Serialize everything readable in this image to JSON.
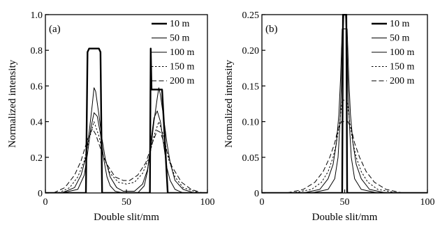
{
  "chart_data": [
    {
      "type": "line",
      "panel_label": "(a)",
      "xlabel": "Double slit/mm",
      "ylabel": "Normalized intensity",
      "xlim": [
        0,
        100
      ],
      "ylim": [
        0,
        1.0
      ],
      "xticks": [
        0,
        50,
        100
      ],
      "xtick_labels": [
        "0",
        "50",
        "100"
      ],
      "yticks": [
        0,
        0.2,
        0.4,
        0.6,
        0.8,
        1.0
      ],
      "ytick_labels": [
        "0",
        "0.2",
        "0.4",
        "0.6",
        "0.8",
        "1.0"
      ],
      "legend_position": "top-right",
      "series": [
        {
          "name": "10 m",
          "style": "solid-bold",
          "x": [
            0,
            25,
            26,
            27,
            33,
            34,
            35,
            64.5,
            65,
            65.5,
            72,
            75.5,
            100
          ],
          "y": [
            0,
            0,
            0.79,
            0.81,
            0.81,
            0.79,
            0,
            0,
            0.81,
            0.58,
            0.58,
            0,
            0
          ]
        },
        {
          "name": "50 m",
          "style": "solid",
          "x": [
            10,
            20,
            24,
            26,
            28,
            30,
            32,
            34,
            36,
            38,
            40,
            43,
            48,
            57,
            61,
            63,
            65,
            67,
            69,
            71,
            73,
            75,
            77,
            80,
            85,
            92
          ],
          "y": [
            0,
            0.02,
            0.1,
            0.22,
            0.36,
            0.45,
            0.43,
            0.33,
            0.19,
            0.09,
            0.04,
            0.01,
            0,
            0,
            0.04,
            0.12,
            0.28,
            0.42,
            0.46,
            0.4,
            0.27,
            0.14,
            0.07,
            0.02,
            0,
            0
          ]
        },
        {
          "name": "100 m",
          "style": "solid",
          "x": [
            10,
            18,
            22,
            25,
            27,
            29,
            30,
            31,
            33,
            35,
            37,
            40,
            44,
            48,
            55,
            60,
            63,
            65,
            67,
            69,
            70,
            71,
            73,
            75,
            77,
            80,
            85,
            92
          ],
          "y": [
            0,
            0.03,
            0.1,
            0.2,
            0.34,
            0.5,
            0.59,
            0.57,
            0.44,
            0.3,
            0.19,
            0.09,
            0.03,
            0.01,
            0.01,
            0.05,
            0.13,
            0.24,
            0.4,
            0.53,
            0.59,
            0.55,
            0.42,
            0.28,
            0.17,
            0.07,
            0.02,
            0
          ]
        },
        {
          "name": "150 m",
          "style": "dotted",
          "x": [
            8,
            15,
            20,
            24,
            27,
            30,
            33,
            36,
            40,
            45,
            50,
            55,
            60,
            64,
            67,
            70,
            73,
            76,
            80,
            85,
            95
          ],
          "y": [
            0,
            0.03,
            0.09,
            0.18,
            0.3,
            0.4,
            0.32,
            0.2,
            0.11,
            0.06,
            0.05,
            0.06,
            0.11,
            0.2,
            0.32,
            0.4,
            0.32,
            0.19,
            0.09,
            0.03,
            0
          ]
        },
        {
          "name": "200 m",
          "style": "dashed",
          "x": [
            5,
            12,
            18,
            22,
            26,
            29,
            31,
            34,
            38,
            43,
            48,
            52,
            57,
            62,
            66,
            69,
            71,
            74,
            78,
            84,
            90,
            97
          ],
          "y": [
            0,
            0.03,
            0.1,
            0.18,
            0.3,
            0.36,
            0.33,
            0.25,
            0.16,
            0.09,
            0.07,
            0.07,
            0.1,
            0.17,
            0.28,
            0.35,
            0.34,
            0.26,
            0.15,
            0.06,
            0.02,
            0
          ]
        }
      ]
    },
    {
      "type": "line",
      "panel_label": "(b)",
      "xlabel": "Double slit/mm",
      "ylabel": "Normalized intensity",
      "xlim": [
        0,
        100
      ],
      "ylim": [
        0,
        0.25
      ],
      "xticks": [
        0,
        50,
        100
      ],
      "xtick_labels": [
        "0",
        "50",
        "100"
      ],
      "yticks": [
        0,
        0.05,
        0.1,
        0.15,
        0.2,
        0.25
      ],
      "ytick_labels": [
        "0",
        "0.05",
        "0.10",
        "0.15",
        "0.20",
        "0.25"
      ],
      "legend_position": "top-right",
      "series": [
        {
          "name": "10 m",
          "style": "solid-bold",
          "x": [
            0,
            48.5,
            49,
            51,
            51.5,
            100
          ],
          "y": [
            0,
            0,
            0.25,
            0.25,
            0,
            0
          ]
        },
        {
          "name": "50 m",
          "style": "solid",
          "x": [
            30,
            40,
            44,
            46,
            47,
            48,
            48.5,
            49.5,
            50.5,
            51.5,
            52,
            53,
            54,
            56,
            60,
            70
          ],
          "y": [
            0,
            0.005,
            0.02,
            0.05,
            0.09,
            0.15,
            0.2,
            0.25,
            0.25,
            0.2,
            0.15,
            0.09,
            0.05,
            0.02,
            0.005,
            0
          ]
        },
        {
          "name": "100 m",
          "style": "solid",
          "x": [
            25,
            35,
            40,
            43,
            45,
            46.5,
            47.5,
            48.5,
            51.5,
            52.5,
            53.5,
            55,
            57,
            60,
            65,
            75
          ],
          "y": [
            0,
            0.005,
            0.02,
            0.04,
            0.07,
            0.11,
            0.16,
            0.23,
            0.23,
            0.16,
            0.11,
            0.07,
            0.04,
            0.02,
            0.005,
            0
          ]
        },
        {
          "name": "150 m",
          "style": "dotted",
          "x": [
            18,
            30,
            36,
            40,
            43,
            45,
            47,
            48.5,
            51.5,
            53,
            55,
            57,
            60,
            64,
            70,
            82
          ],
          "y": [
            0,
            0.005,
            0.015,
            0.03,
            0.05,
            0.07,
            0.1,
            0.13,
            0.13,
            0.1,
            0.07,
            0.05,
            0.03,
            0.015,
            0.005,
            0
          ]
        },
        {
          "name": "200 m",
          "style": "dashed",
          "x": [
            15,
            25,
            32,
            37,
            41,
            44,
            46,
            48,
            52,
            54,
            56,
            59,
            63,
            68,
            75,
            85
          ],
          "y": [
            0,
            0.005,
            0.015,
            0.03,
            0.05,
            0.07,
            0.09,
            0.1,
            0.1,
            0.09,
            0.07,
            0.05,
            0.03,
            0.015,
            0.005,
            0
          ]
        }
      ]
    }
  ]
}
